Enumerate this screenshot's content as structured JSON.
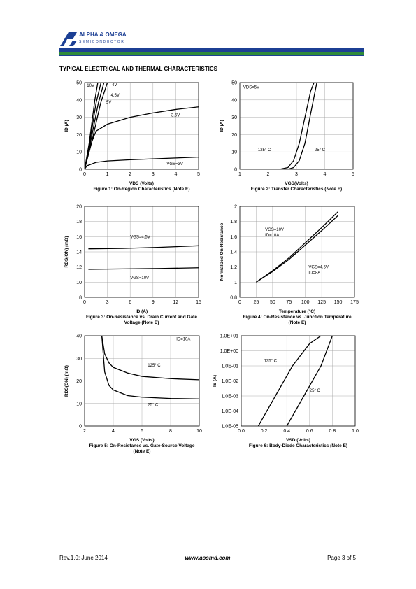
{
  "header": {
    "company": "ALPHA & OMEGA",
    "sub": "SEMICONDUCTOR"
  },
  "section_title": "TYPICAL ELECTRICAL AND THERMAL CHARACTERISTICS",
  "chart_data": [
    {
      "type": "line",
      "caption": [
        "Figure 1: On-Region Characteristics (Note E)"
      ],
      "xlabel": "VDS (Volts)",
      "ylabel": "ID (A)",
      "xlim": [
        0,
        5
      ],
      "ylim": [
        0,
        50
      ],
      "xticks": [
        0,
        1,
        2,
        3,
        4,
        5
      ],
      "yticks": [
        0,
        10,
        20,
        30,
        40,
        50
      ],
      "grid": true,
      "annotations": [],
      "series": [
        {
          "name": "10V",
          "color": "#000",
          "x": [
            0,
            0.2,
            0.45,
            0.58
          ],
          "values": [
            0,
            15,
            40,
            50
          ]
        },
        {
          "name": "4V",
          "color": "#000",
          "x": [
            0,
            0.3,
            0.7,
            1.0
          ],
          "values": [
            0,
            15,
            38,
            50
          ]
        },
        {
          "name": "4.5V",
          "color": "#000",
          "x": [
            0,
            0.25,
            0.6,
            0.85
          ],
          "values": [
            0,
            15,
            38,
            50
          ]
        },
        {
          "name": "5V",
          "color": "#000",
          "x": [
            0,
            0.22,
            0.5,
            0.72
          ],
          "values": [
            0,
            15,
            38,
            50
          ]
        },
        {
          "name": "3.5V",
          "color": "#000",
          "x": [
            0,
            0.2,
            0.5,
            1,
            2,
            3,
            4,
            5
          ],
          "values": [
            0,
            12,
            22,
            26,
            30,
            32.5,
            34.5,
            36
          ]
        },
        {
          "name": "VGS=3V",
          "color": "#000",
          "x": [
            0,
            0.1,
            0.5,
            1,
            2,
            3,
            4,
            5
          ],
          "values": [
            0,
            2,
            4,
            4.8,
            5.5,
            6,
            6.5,
            7
          ]
        }
      ]
    },
    {
      "type": "line",
      "caption": [
        "Figure 2: Transfer Characteristics (Note E)"
      ],
      "xlabel": "VGS(Volts)",
      "ylabel": "ID (A)",
      "xlim": [
        1,
        5
      ],
      "ylim": [
        0,
        50
      ],
      "xticks": [
        1,
        2,
        3,
        4,
        5
      ],
      "yticks": [
        0,
        10,
        20,
        30,
        40,
        50
      ],
      "grid": true,
      "annotations": [
        "VDS=5V"
      ],
      "series": [
        {
          "name": "125° C",
          "color": "#000",
          "x": [
            1,
            2.4,
            2.7,
            2.9,
            3.1,
            3.3,
            3.5,
            3.62
          ],
          "values": [
            0,
            0,
            1,
            5,
            15,
            30,
            45,
            50
          ]
        },
        {
          "name": "25° C",
          "color": "#000",
          "x": [
            1,
            2.7,
            2.9,
            3.1,
            3.3,
            3.5,
            3.72
          ],
          "values": [
            0,
            0,
            1,
            5,
            15,
            32,
            50
          ]
        }
      ]
    },
    {
      "type": "line",
      "caption": [
        "Figure 3: On-Resistance vs. Drain Current and Gate",
        "Voltage (Note E)"
      ],
      "xlabel": "ID (A)",
      "ylabel": "RDS(ON) (mΩ)",
      "xlim": [
        0,
        15
      ],
      "ylim": [
        8,
        20
      ],
      "xticks": [
        0,
        3,
        6,
        9,
        12,
        15
      ],
      "yticks": [
        8,
        10,
        12,
        14,
        16,
        18,
        20
      ],
      "grid": true,
      "annotations": [],
      "series": [
        {
          "name": "VGS=4.5V",
          "color": "#000",
          "x": [
            0.5,
            5,
            10,
            15
          ],
          "values": [
            14.4,
            14.45,
            14.6,
            14.8
          ]
        },
        {
          "name": "VGS=10V",
          "color": "#000",
          "x": [
            0.5,
            5,
            10,
            15
          ],
          "values": [
            11.7,
            11.75,
            11.8,
            11.9
          ]
        }
      ]
    },
    {
      "type": "line",
      "caption": [
        "Figure 4: On-Resistance vs. Junction Temperature",
        "(Note E)"
      ],
      "xlabel": "Temperature (°C)",
      "ylabel": "Normalized On-Resistance",
      "xlim": [
        0,
        175
      ],
      "ylim": [
        0.8,
        2
      ],
      "xticks": [
        0,
        25,
        50,
        75,
        100,
        125,
        150,
        175
      ],
      "yticks": [
        0.8,
        1,
        1.2,
        1.4,
        1.6,
        1.8,
        2
      ],
      "grid": true,
      "annotations": [],
      "series": [
        {
          "name": "VGS=10V",
          "note": "ID=10A",
          "color": "#000",
          "x": [
            25,
            50,
            75,
            100,
            125,
            150
          ],
          "values": [
            1,
            1.15,
            1.32,
            1.52,
            1.72,
            1.93
          ]
        },
        {
          "name": "VGS=4.5V",
          "note": "ID=8A",
          "color": "#000",
          "x": [
            25,
            50,
            75,
            100,
            125,
            150
          ],
          "values": [
            1,
            1.14,
            1.3,
            1.49,
            1.68,
            1.88
          ]
        }
      ]
    },
    {
      "type": "line",
      "caption": [
        "Figure 5: On-Resistance vs. Gate-Source Voltage",
        "(Note E)"
      ],
      "xlabel": "VGS (Volts)",
      "ylabel": "RDS(ON) (mΩ)",
      "xlim": [
        2,
        10
      ],
      "ylim": [
        0,
        40
      ],
      "xticks": [
        2,
        4,
        6,
        8,
        10
      ],
      "yticks": [
        0,
        10,
        20,
        30,
        40
      ],
      "grid": true,
      "annotations": [
        "ID=10A"
      ],
      "series": [
        {
          "name": "125° C",
          "color": "#000",
          "x": [
            3.2,
            3.4,
            3.7,
            4,
            5,
            6,
            8,
            10
          ],
          "values": [
            40,
            32,
            28,
            26,
            23.5,
            22,
            21,
            20.5
          ]
        },
        {
          "name": "25° C",
          "color": "#000",
          "x": [
            3.2,
            3.4,
            3.7,
            4,
            5,
            6,
            8,
            10
          ],
          "values": [
            40,
            24,
            18,
            16,
            13.5,
            12.8,
            12.2,
            12
          ]
        }
      ]
    },
    {
      "type": "line",
      "caption": [
        "Figure 6: Body-Diode Characteristics (Note E)"
      ],
      "xlabel": "VSD (Volts)",
      "ylabel": "IS (A)",
      "xlim": [
        0,
        1
      ],
      "ylim": [
        1e-05,
        10
      ],
      "log_y": true,
      "xticks": [
        {
          "value": 0,
          "label": "0.0"
        },
        0.2,
        0.4,
        0.6,
        0.8,
        {
          "value": 1,
          "label": "1.0"
        }
      ],
      "yticks": [
        {
          "value": 1e-05,
          "label": "1.0E-05"
        },
        {
          "value": 0.0001,
          "label": "1.0E-04"
        },
        {
          "value": 0.001,
          "label": "1.0E-03"
        },
        {
          "value": 0.01,
          "label": "1.0E-02"
        },
        {
          "value": 0.1,
          "label": "1.0E-01"
        },
        {
          "value": 1,
          "label": "1.0E+00"
        },
        {
          "value": 10,
          "label": "1.0E+01"
        }
      ],
      "grid": true,
      "annotations": [],
      "series": [
        {
          "name": "125° C",
          "color": "#000",
          "x": [
            0.15,
            0.3,
            0.45,
            0.6,
            0.7
          ],
          "values": [
            1e-05,
            0.001,
            0.1,
            3,
            10
          ]
        },
        {
          "name": "25° C",
          "color": "#000",
          "x": [
            0.4,
            0.55,
            0.7,
            0.8
          ],
          "values": [
            1e-05,
            0.001,
            0.1,
            10
          ]
        }
      ]
    }
  ],
  "footer": {
    "left": "Rev.1.0: June 2014",
    "center": "www.aosmd.com",
    "right": "Page 3 of 5"
  }
}
